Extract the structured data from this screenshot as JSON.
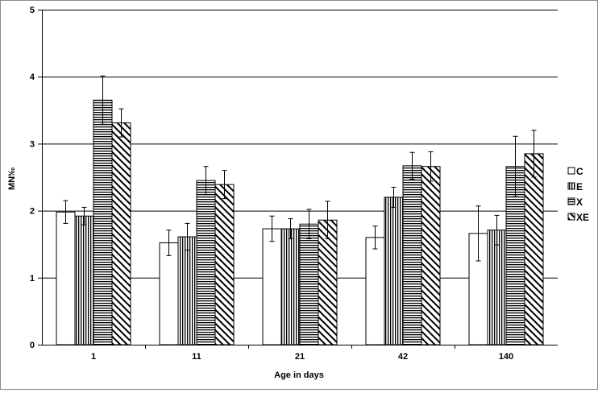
{
  "chart_data": {
    "type": "bar",
    "title": "",
    "xlabel": "Age in days",
    "ylabel": "MN‰",
    "ylim": [
      0,
      5
    ],
    "yticks": [
      0,
      1,
      2,
      3,
      4,
      5
    ],
    "grid": true,
    "legend_position": "right",
    "categories": [
      "1",
      "11",
      "21",
      "42",
      "140"
    ],
    "series": [
      {
        "name": "C",
        "pattern": "blank",
        "values": [
          1.98,
          1.52,
          1.73,
          1.6,
          1.66
        ],
        "errors": [
          0.17,
          0.19,
          0.19,
          0.17,
          0.41
        ]
      },
      {
        "name": "E",
        "pattern": "vertical",
        "values": [
          1.92,
          1.61,
          1.73,
          2.2,
          1.71
        ],
        "errors": [
          0.13,
          0.2,
          0.15,
          0.15,
          0.22
        ]
      },
      {
        "name": "X",
        "pattern": "horizontal",
        "values": [
          3.65,
          2.45,
          1.8,
          2.67,
          2.66
        ],
        "errors": [
          0.36,
          0.21,
          0.22,
          0.2,
          0.45
        ]
      },
      {
        "name": "XE",
        "pattern": "diagonal",
        "values": [
          3.31,
          2.39,
          1.86,
          2.66,
          2.85
        ],
        "errors": [
          0.21,
          0.21,
          0.28,
          0.22,
          0.35
        ]
      }
    ]
  }
}
